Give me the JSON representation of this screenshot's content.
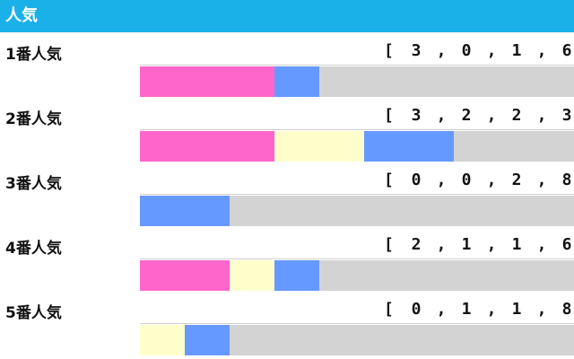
{
  "header": {
    "title": "人気"
  },
  "legend_colors": {
    "win": "#ff66cc",
    "second": "#ffffcc",
    "third": "#6699ff",
    "out": "#d3d3d3"
  },
  "chart_data": {
    "type": "bar",
    "stacked": true,
    "orientation": "horizontal",
    "title": "人気",
    "categories": [
      "1番人気",
      "2番人気",
      "3番人気",
      "4番人気",
      "5番人気"
    ],
    "series": [
      {
        "values": [
          3,
          3,
          0,
          2,
          0
        ],
        "color": "#ff66cc"
      },
      {
        "values": [
          0,
          2,
          0,
          1,
          1
        ],
        "color": "#ffffcc"
      },
      {
        "values": [
          1,
          2,
          2,
          1,
          1
        ],
        "color": "#6699ff"
      },
      {
        "values": [
          6,
          3,
          8,
          6,
          8
        ],
        "color": "#d3d3d3"
      }
    ],
    "records_visible": [
      [
        "3",
        "0",
        "1",
        "6"
      ],
      [
        "3",
        "2",
        "2",
        "3"
      ],
      [
        "0",
        "0",
        "2",
        "8"
      ],
      [
        "2",
        "1",
        "1",
        "6"
      ],
      [
        "0",
        "1",
        "1",
        "8"
      ]
    ],
    "record_open": "[",
    "record_sep": ",",
    "total_per_row": 10
  }
}
